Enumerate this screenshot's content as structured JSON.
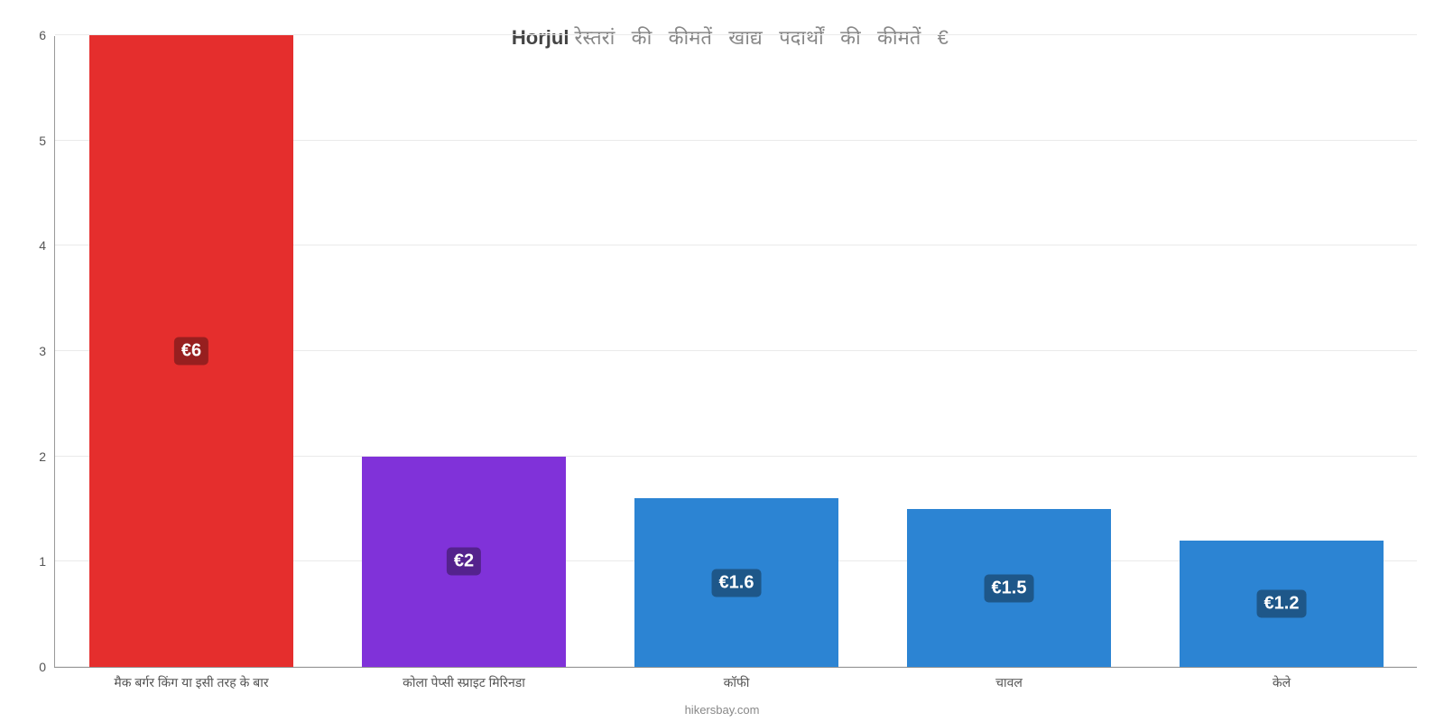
{
  "chart": {
    "type": "bar",
    "title_parts": {
      "strong": "Horjul",
      "rest": " रेस्तरां   की   कीमतें   खाद्य   पदार्थों   की   कीमतें   €"
    },
    "title_fontsize": 22,
    "title_color_strong": "#444444",
    "title_color_rest": "#888888",
    "caption": "hikersbay.com",
    "background_color": "#ffffff",
    "grid_color": "#eaeaea",
    "axis_color": "#999999",
    "y": {
      "min": 0,
      "max": 6,
      "step": 1,
      "label_color": "#555555",
      "label_fontsize": 14
    },
    "x_label_fontsize": 14,
    "x_label_color": "#555555",
    "bar_width_pct": 15,
    "value_label_fontsize": 20,
    "bars": [
      {
        "category": "मैक बर्गर किंग या इसी तरह के बार",
        "value": 6,
        "value_label": "€6",
        "color": "#e52e2d",
        "badge_bg": "#971f1f"
      },
      {
        "category": "कोला पेप्सी स्प्राइट मिरिनडा",
        "value": 2,
        "value_label": "€2",
        "color": "#8032d9",
        "badge_bg": "#54228d"
      },
      {
        "category": "कॉफी",
        "value": 1.6,
        "value_label": "€1.6",
        "color": "#2c84d3",
        "badge_bg": "#1e5789"
      },
      {
        "category": "चावल",
        "value": 1.5,
        "value_label": "€1.5",
        "color": "#2c84d3",
        "badge_bg": "#1e5789"
      },
      {
        "category": "केले",
        "value": 1.2,
        "value_label": "€1.2",
        "color": "#2c84d3",
        "badge_bg": "#1e5789"
      }
    ]
  }
}
